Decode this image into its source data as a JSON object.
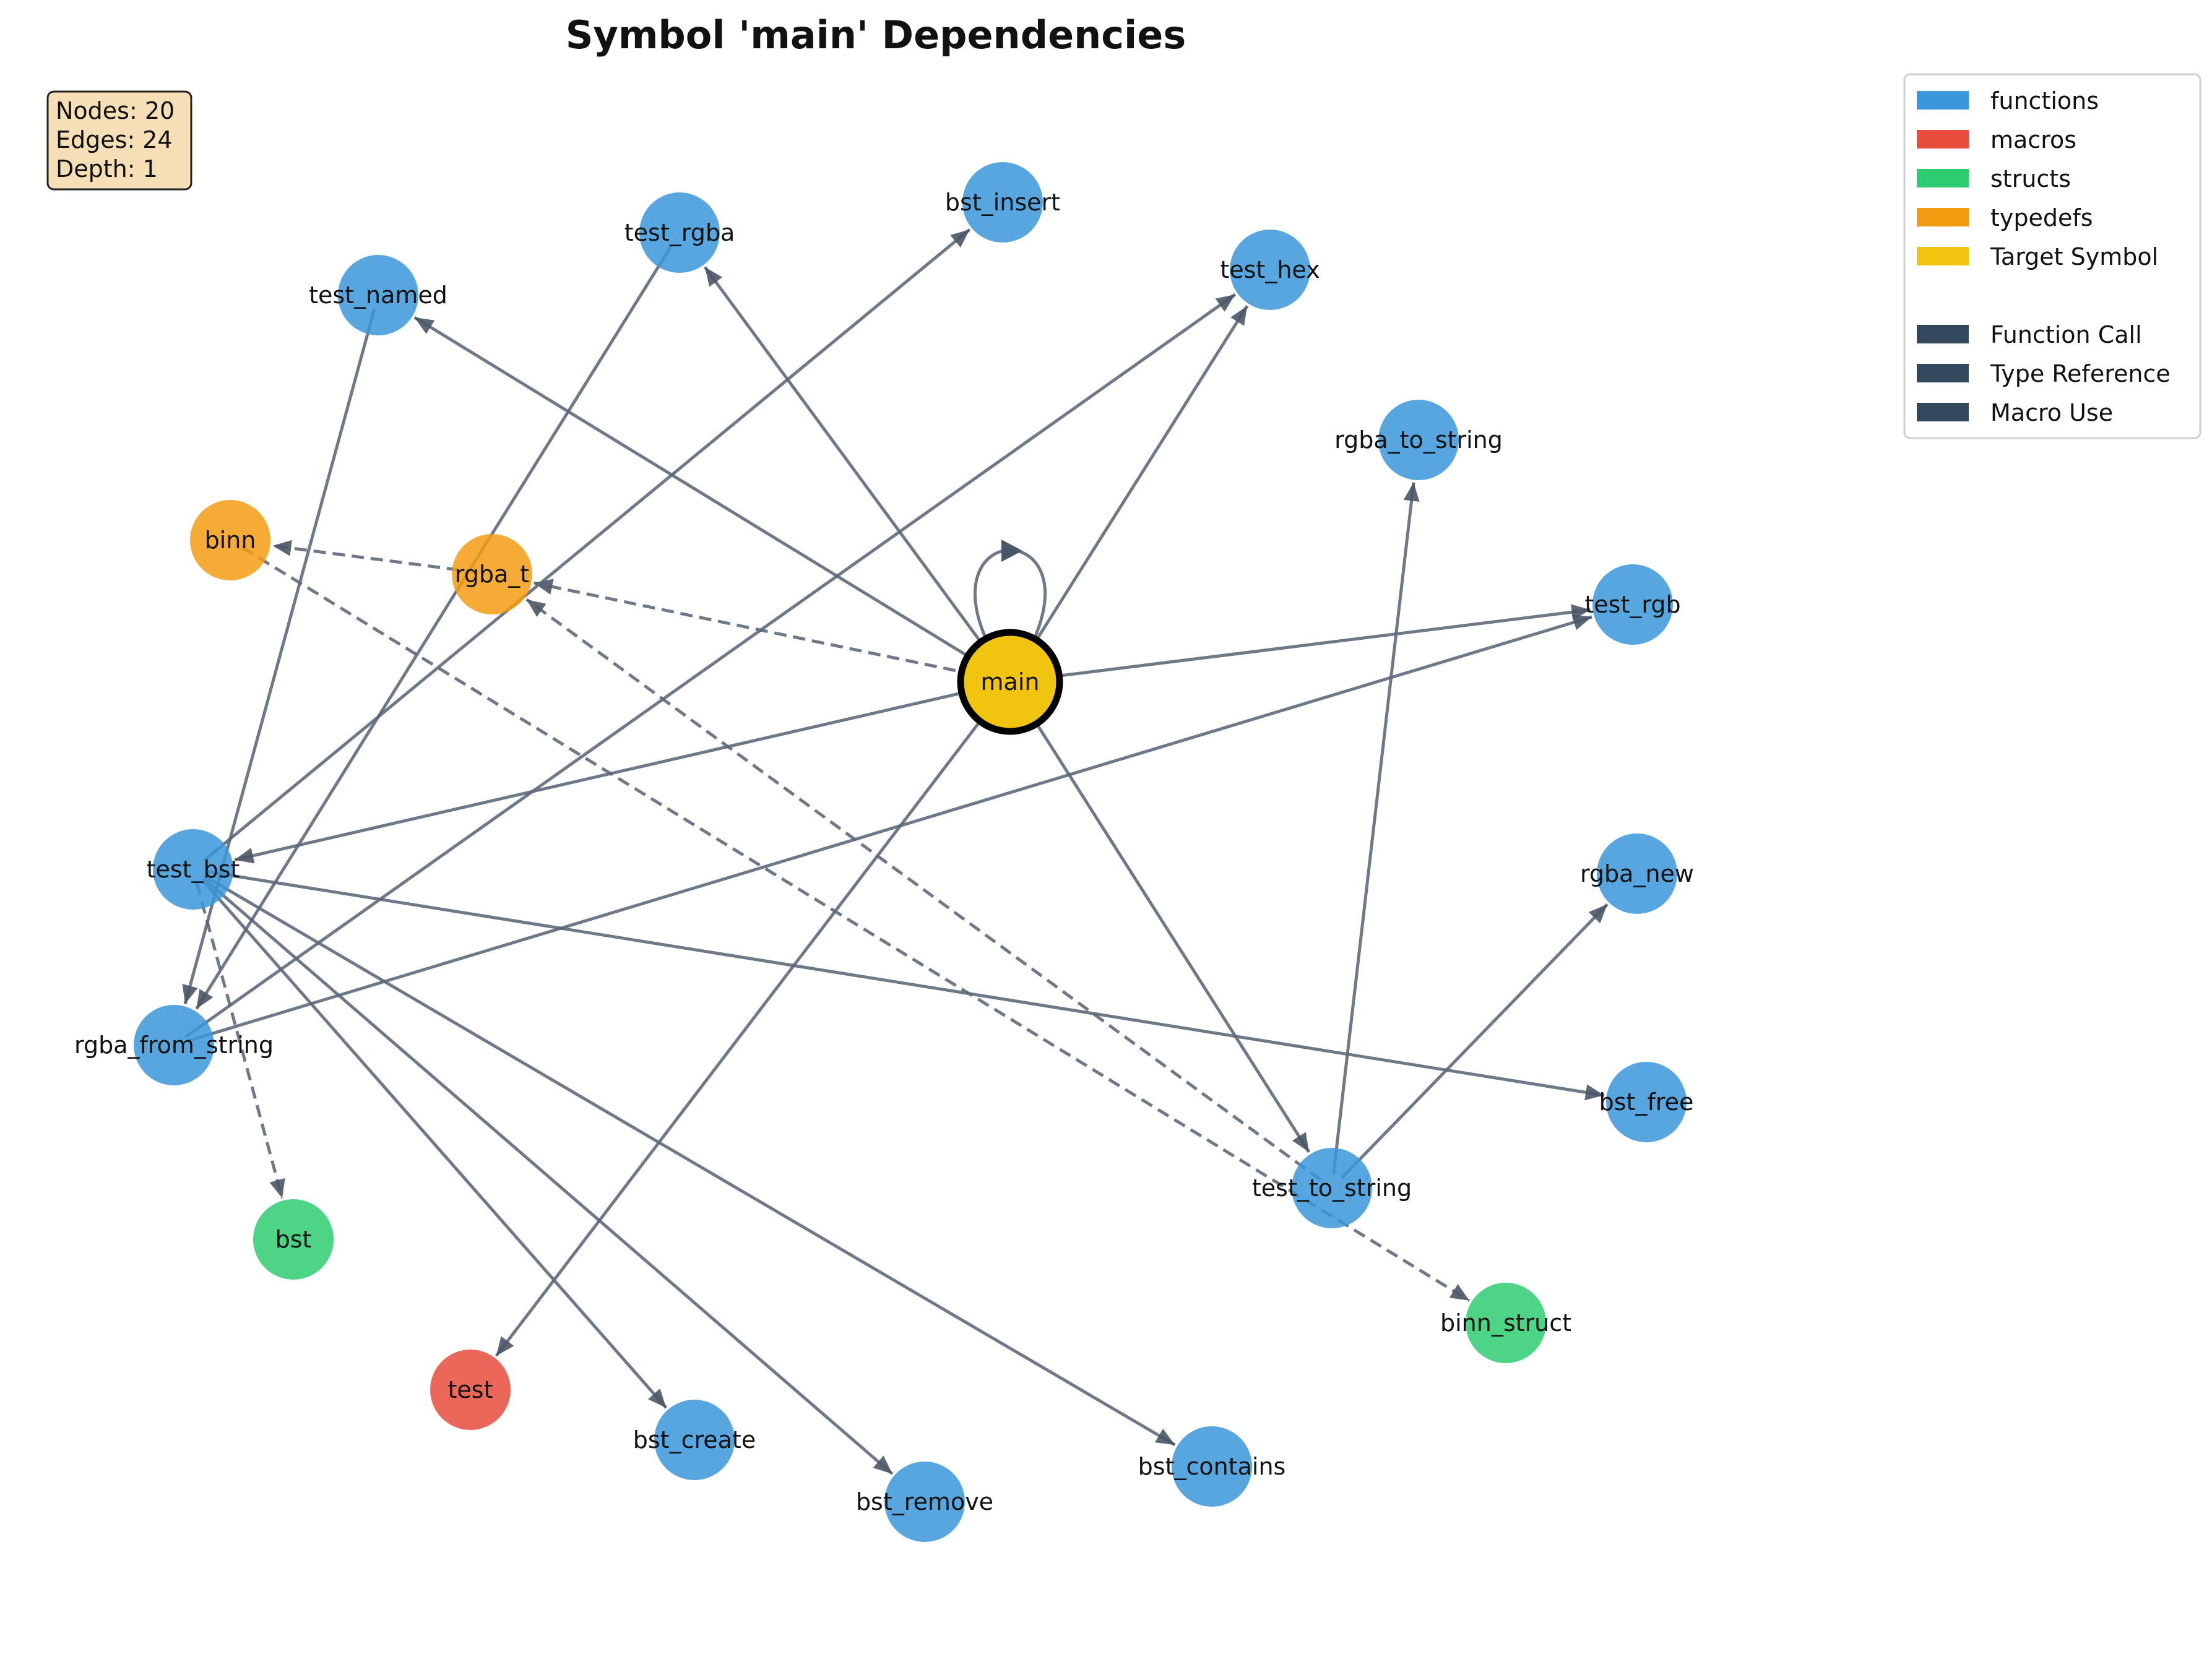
{
  "title": "Symbol 'main' Dependencies",
  "stats": {
    "nodes": "Nodes: 20",
    "edges": "Edges: 24",
    "depth": "Depth: 1"
  },
  "legend": {
    "node_types": [
      {
        "label": "functions",
        "color": "#3b97db"
      },
      {
        "label": "macros",
        "color": "#e74c3c"
      },
      {
        "label": "structs",
        "color": "#2ecc71"
      },
      {
        "label": "typedefs",
        "color": "#f39c12"
      },
      {
        "label": "Target Symbol",
        "color": "#f1c40f"
      }
    ],
    "edge_types": [
      {
        "label": "Function Call",
        "color": "#34495e"
      },
      {
        "label": "Type Reference",
        "color": "#34495e"
      },
      {
        "label": "Macro Use",
        "color": "#34495e"
      }
    ]
  },
  "nodes": [
    {
      "id": "main",
      "label": "main",
      "type": "target"
    },
    {
      "id": "test_rgba",
      "label": "test_rgba",
      "type": "function"
    },
    {
      "id": "bst_insert",
      "label": "bst_insert",
      "type": "function"
    },
    {
      "id": "test_hex",
      "label": "test_hex",
      "type": "function"
    },
    {
      "id": "test_named",
      "label": "test_named",
      "type": "function"
    },
    {
      "id": "rgba_to_string",
      "label": "rgba_to_string",
      "type": "function"
    },
    {
      "id": "binn",
      "label": "binn",
      "type": "typedef"
    },
    {
      "id": "rgba_t",
      "label": "rgba_t",
      "type": "typedef"
    },
    {
      "id": "test_rgb",
      "label": "test_rgb",
      "type": "function"
    },
    {
      "id": "test_bst",
      "label": "test_bst",
      "type": "function"
    },
    {
      "id": "rgba_new",
      "label": "rgba_new",
      "type": "function"
    },
    {
      "id": "rgba_from_string",
      "label": "rgba_from_string",
      "type": "function"
    },
    {
      "id": "bst_free",
      "label": "bst_free",
      "type": "function"
    },
    {
      "id": "test_to_string",
      "label": "test_to_string",
      "type": "function"
    },
    {
      "id": "bst",
      "label": "bst",
      "type": "struct"
    },
    {
      "id": "binn_struct",
      "label": "binn_struct",
      "type": "struct"
    },
    {
      "id": "test",
      "label": "test",
      "type": "macro"
    },
    {
      "id": "bst_create",
      "label": "bst_create",
      "type": "function"
    },
    {
      "id": "bst_remove",
      "label": "bst_remove",
      "type": "function"
    },
    {
      "id": "bst_contains",
      "label": "bst_contains",
      "type": "function"
    }
  ],
  "edges": [
    {
      "from": "main",
      "to": "main",
      "style": "solid"
    },
    {
      "from": "main",
      "to": "test_named",
      "style": "solid"
    },
    {
      "from": "main",
      "to": "test_rgba",
      "style": "solid"
    },
    {
      "from": "main",
      "to": "test_hex",
      "style": "solid"
    },
    {
      "from": "main",
      "to": "test_rgb",
      "style": "solid"
    },
    {
      "from": "main",
      "to": "rgba_t",
      "style": "dashed"
    },
    {
      "from": "main",
      "to": "test_bst",
      "style": "solid"
    },
    {
      "from": "main",
      "to": "test_to_string",
      "style": "solid"
    },
    {
      "from": "main",
      "to": "test",
      "style": "solid"
    },
    {
      "from": "rgba_t",
      "to": "binn",
      "style": "dashed"
    },
    {
      "from": "test_named",
      "to": "rgba_from_string",
      "style": "solid"
    },
    {
      "from": "test_rgba",
      "to": "rgba_from_string",
      "style": "solid"
    },
    {
      "from": "test_bst",
      "to": "bst_insert",
      "style": "solid"
    },
    {
      "from": "rgba_from_string",
      "to": "test_hex",
      "style": "solid"
    },
    {
      "from": "rgba_from_string",
      "to": "test_rgb",
      "style": "solid"
    },
    {
      "from": "test_bst",
      "to": "bst",
      "style": "dashed"
    },
    {
      "from": "test_bst",
      "to": "bst_create",
      "style": "solid"
    },
    {
      "from": "test_bst",
      "to": "bst_remove",
      "style": "solid"
    },
    {
      "from": "test_bst",
      "to": "bst_contains",
      "style": "solid"
    },
    {
      "from": "test_bst",
      "to": "bst_free",
      "style": "solid"
    },
    {
      "from": "test_to_string",
      "to": "rgba_to_string",
      "style": "solid"
    },
    {
      "from": "test_to_string",
      "to": "rgba_new",
      "style": "solid"
    },
    {
      "from": "test_to_string",
      "to": "rgba_t",
      "style": "dashed"
    },
    {
      "from": "binn",
      "to": "binn_struct",
      "style": "dashed"
    }
  ]
}
